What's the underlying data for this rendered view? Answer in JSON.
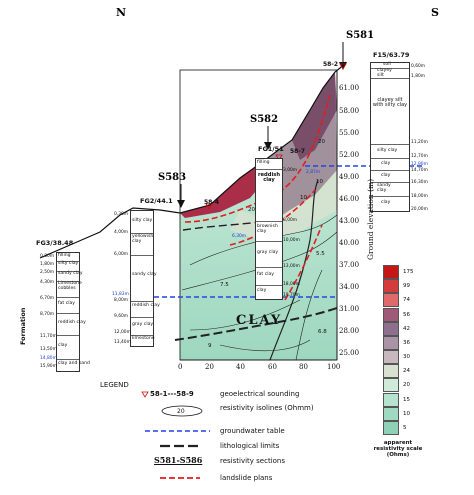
{
  "directions": {
    "north": "N",
    "south": "S"
  },
  "sections": [
    "S581",
    "S582",
    "S583"
  ],
  "boreholes": {
    "fg3": {
      "name": "FG3/38.48",
      "layers": [
        "filling",
        "silty clay",
        "sandy clay",
        "Limestone cobbles",
        "fat clay",
        "reddish clay",
        "clay",
        "clay and sand"
      ],
      "depths": [
        "0,80m",
        "1,80m",
        "2,50m",
        "4,30m",
        "6,70m",
        "8,70m",
        "11,70m",
        "13,50m",
        "14,80m",
        "15,90m"
      ]
    },
    "fg2": {
      "name": "FG2/44.1",
      "layers": [
        "silty clay",
        "yellowish clay",
        "sandy clay",
        "reddish clay",
        "gray clay",
        "limestone"
      ],
      "depths": [
        "0,30m",
        "4,00m",
        "6,00m",
        "8,00m",
        "9,60m",
        "12,00m",
        "13,40m"
      ]
    },
    "fg1": {
      "name": "FG1/51",
      "layers": [
        "filling",
        "reddish clay",
        "brownish clay",
        "gray clay",
        "fat clay",
        "clay"
      ],
      "depths": [
        "3,00m",
        "8,00m",
        "10,00m",
        "13,00m",
        "18,00m",
        "19,70m"
      ]
    },
    "f15": {
      "name": "F15/63.79",
      "layers": [
        "soil",
        "clayey silt",
        "clayey silt with silty clay",
        "silty clay",
        "clay",
        "clay",
        "sandy clay",
        "clay"
      ],
      "depths": [
        "0,60m",
        "1,80m",
        "11,20m",
        "12,70m",
        "14,70m",
        "16,30m",
        "18,00m",
        "20,00m"
      ],
      "water": "12,90m"
    }
  },
  "soundings": [
    "58-2",
    "58-7",
    "58-4"
  ],
  "water_labels": [
    "2,87m",
    "11,83m",
    "6,30m"
  ],
  "isolines": [
    "10",
    "20",
    "7.5",
    "9",
    "5.5",
    "6.8",
    "20",
    "10"
  ],
  "clay_label": "CLAY",
  "formation_label": "Formation",
  "x_axis": {
    "ticks": [
      "0",
      "20",
      "40",
      "60",
      "80",
      "100"
    ]
  },
  "y_axis": {
    "label": "Ground elevation (m)",
    "ticks": [
      "61.00",
      "58.00",
      "55.00",
      "52.00",
      "49.00",
      "46.00",
      "43.00",
      "40.00",
      "37.00",
      "34.00",
      "31.00",
      "28.00",
      "25.00"
    ]
  },
  "scale": {
    "title": "apparent resistivity scale (Ohms)",
    "values": [
      "175",
      "99",
      "74",
      "56",
      "42",
      "36",
      "30",
      "24",
      "20",
      "15",
      "10",
      "5"
    ],
    "colors": [
      "#c61515",
      "#d63b3b",
      "#e06a6a",
      "#a05a78",
      "#8e6f8e",
      "#a993a6",
      "#c7b8c0",
      "#d9e0cf",
      "#cfead9",
      "#b6e3cd",
      "#9fd9c2",
      "#8ed1b6"
    ]
  },
  "legend": {
    "title": "LEGEND",
    "items": [
      {
        "key": "58-1---58-9",
        "text": "geoelectrical sounding"
      },
      {
        "key": "20",
        "text": "resistivity isolines (Ohmm)"
      },
      {
        "key": "",
        "text": "groundwater table"
      },
      {
        "key": "",
        "text": "lithological limits"
      },
      {
        "key": "S581-S586",
        "text": "resistivity sections"
      },
      {
        "key": "",
        "text": "landslide plans"
      }
    ]
  }
}
